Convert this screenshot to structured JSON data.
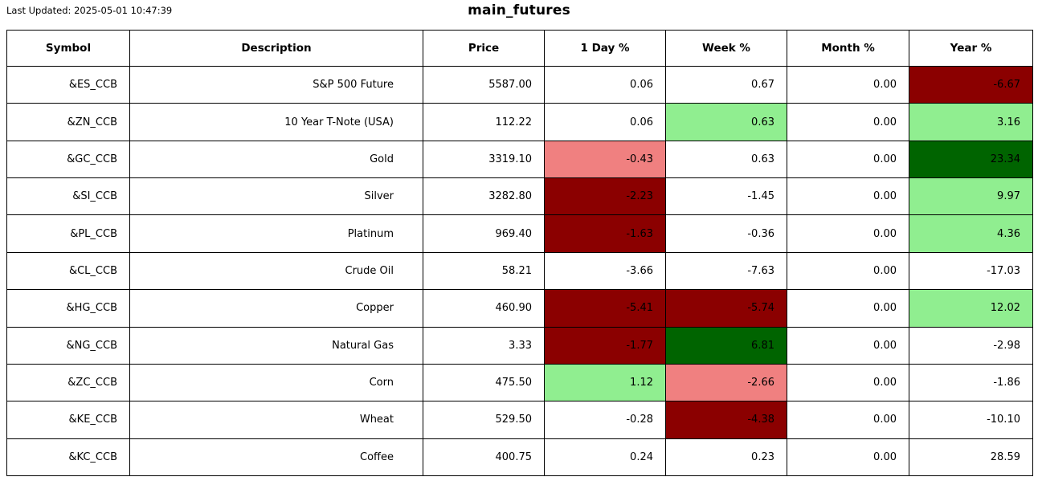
{
  "header": {
    "last_updated": "Last Updated: 2025-05-01 10:47:39",
    "title": "main_futures"
  },
  "colors": {
    "none": "#ffffff",
    "up": "#90ee90",
    "strong_up": "#006400",
    "down": "#f08080",
    "strong_down": "#8b0000",
    "border": "#000000",
    "text": "#000000"
  },
  "chart_data": {
    "type": "table",
    "title": "main_futures",
    "columns": [
      "Symbol",
      "Description",
      "Price",
      "1 Day %",
      "Week %",
      "Month %",
      "Year %"
    ],
    "rows": [
      [
        {
          "v": "&ES_CCB",
          "bg": "none"
        },
        {
          "v": "S&P 500 Future",
          "bg": "none"
        },
        {
          "v": "5587.00",
          "bg": "none"
        },
        {
          "v": "0.06",
          "bg": "none"
        },
        {
          "v": "0.67",
          "bg": "none"
        },
        {
          "v": "0.00",
          "bg": "none"
        },
        {
          "v": "-6.67",
          "bg": "strong_down"
        }
      ],
      [
        {
          "v": "&ZN_CCB",
          "bg": "none"
        },
        {
          "v": "10 Year T-Note (USA)",
          "bg": "none"
        },
        {
          "v": "112.22",
          "bg": "none"
        },
        {
          "v": "0.06",
          "bg": "none"
        },
        {
          "v": "0.63",
          "bg": "up"
        },
        {
          "v": "0.00",
          "bg": "none"
        },
        {
          "v": "3.16",
          "bg": "up"
        }
      ],
      [
        {
          "v": "&GC_CCB",
          "bg": "none"
        },
        {
          "v": "Gold",
          "bg": "none"
        },
        {
          "v": "3319.10",
          "bg": "none"
        },
        {
          "v": "-0.43",
          "bg": "down"
        },
        {
          "v": "0.63",
          "bg": "none"
        },
        {
          "v": "0.00",
          "bg": "none"
        },
        {
          "v": "23.34",
          "bg": "strong_up"
        }
      ],
      [
        {
          "v": "&SI_CCB",
          "bg": "none"
        },
        {
          "v": "Silver",
          "bg": "none"
        },
        {
          "v": "3282.80",
          "bg": "none"
        },
        {
          "v": "-2.23",
          "bg": "strong_down"
        },
        {
          "v": "-1.45",
          "bg": "none"
        },
        {
          "v": "0.00",
          "bg": "none"
        },
        {
          "v": "9.97",
          "bg": "up"
        }
      ],
      [
        {
          "v": "&PL_CCB",
          "bg": "none"
        },
        {
          "v": "Platinum",
          "bg": "none"
        },
        {
          "v": "969.40",
          "bg": "none"
        },
        {
          "v": "-1.63",
          "bg": "strong_down"
        },
        {
          "v": "-0.36",
          "bg": "none"
        },
        {
          "v": "0.00",
          "bg": "none"
        },
        {
          "v": "4.36",
          "bg": "up"
        }
      ],
      [
        {
          "v": "&CL_CCB",
          "bg": "none"
        },
        {
          "v": "Crude Oil",
          "bg": "none"
        },
        {
          "v": "58.21",
          "bg": "none"
        },
        {
          "v": "-3.66",
          "bg": "none"
        },
        {
          "v": "-7.63",
          "bg": "none"
        },
        {
          "v": "0.00",
          "bg": "none"
        },
        {
          "v": "-17.03",
          "bg": "none"
        }
      ],
      [
        {
          "v": "&HG_CCB",
          "bg": "none"
        },
        {
          "v": "Copper",
          "bg": "none"
        },
        {
          "v": "460.90",
          "bg": "none"
        },
        {
          "v": "-5.41",
          "bg": "strong_down"
        },
        {
          "v": "-5.74",
          "bg": "strong_down"
        },
        {
          "v": "0.00",
          "bg": "none"
        },
        {
          "v": "12.02",
          "bg": "up"
        }
      ],
      [
        {
          "v": "&NG_CCB",
          "bg": "none"
        },
        {
          "v": "Natural Gas",
          "bg": "none"
        },
        {
          "v": "3.33",
          "bg": "none"
        },
        {
          "v": "-1.77",
          "bg": "strong_down"
        },
        {
          "v": "6.81",
          "bg": "strong_up"
        },
        {
          "v": "0.00",
          "bg": "none"
        },
        {
          "v": "-2.98",
          "bg": "none"
        }
      ],
      [
        {
          "v": "&ZC_CCB",
          "bg": "none"
        },
        {
          "v": "Corn",
          "bg": "none"
        },
        {
          "v": "475.50",
          "bg": "none"
        },
        {
          "v": "1.12",
          "bg": "up"
        },
        {
          "v": "-2.66",
          "bg": "down"
        },
        {
          "v": "0.00",
          "bg": "none"
        },
        {
          "v": "-1.86",
          "bg": "none"
        }
      ],
      [
        {
          "v": "&KE_CCB",
          "bg": "none"
        },
        {
          "v": "Wheat",
          "bg": "none"
        },
        {
          "v": "529.50",
          "bg": "none"
        },
        {
          "v": "-0.28",
          "bg": "none"
        },
        {
          "v": "-4.38",
          "bg": "strong_down"
        },
        {
          "v": "0.00",
          "bg": "none"
        },
        {
          "v": "-10.10",
          "bg": "none"
        }
      ],
      [
        {
          "v": "&KC_CCB",
          "bg": "none"
        },
        {
          "v": "Coffee",
          "bg": "none"
        },
        {
          "v": "400.75",
          "bg": "none"
        },
        {
          "v": "0.24",
          "bg": "none"
        },
        {
          "v": "0.23",
          "bg": "none"
        },
        {
          "v": "0.00",
          "bg": "none"
        },
        {
          "v": "28.59",
          "bg": "none"
        }
      ]
    ],
    "legend_position": "none",
    "grid": true
  }
}
